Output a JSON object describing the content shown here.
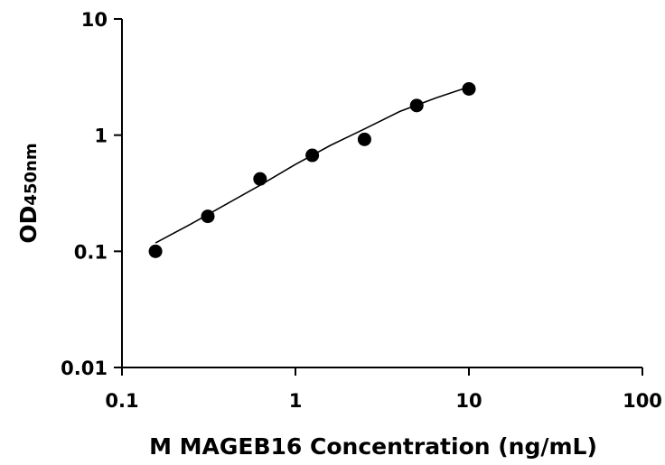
{
  "chart_data": {
    "type": "scatter",
    "title": "",
    "xlabel": "M MAGEB16 Concentration (ng/mL)",
    "ylabel_main": "OD",
    "ylabel_sub": "450nm",
    "x_scale": "log",
    "y_scale": "log",
    "xlim": [
      0.1,
      100
    ],
    "ylim": [
      0.01,
      10
    ],
    "x_ticks": [
      0.1,
      1,
      10,
      100
    ],
    "x_tick_labels": [
      "0.1",
      "1",
      "10",
      "100"
    ],
    "y_ticks": [
      0.01,
      0.1,
      1,
      10
    ],
    "y_tick_labels": [
      "0.01",
      "0.1",
      "1",
      "10"
    ],
    "grid": false,
    "legend": "none",
    "series": [
      {
        "points": [
          {
            "x": 0.156,
            "y": 0.1
          },
          {
            "x": 0.3125,
            "y": 0.2
          },
          {
            "x": 0.625,
            "y": 0.42
          },
          {
            "x": 1.25,
            "y": 0.67
          },
          {
            "x": 2.5,
            "y": 0.92
          },
          {
            "x": 5,
            "y": 1.8
          },
          {
            "x": 10,
            "y": 2.5
          }
        ],
        "color": "#000000"
      }
    ],
    "fit_curve": {
      "x": [
        0.156,
        0.25,
        0.4,
        0.625,
        1,
        1.6,
        2.5,
        4,
        6.5,
        10
      ],
      "y": [
        0.118,
        0.172,
        0.255,
        0.37,
        0.56,
        0.82,
        1.13,
        1.6,
        2.1,
        2.6
      ],
      "color": "#000000"
    }
  }
}
